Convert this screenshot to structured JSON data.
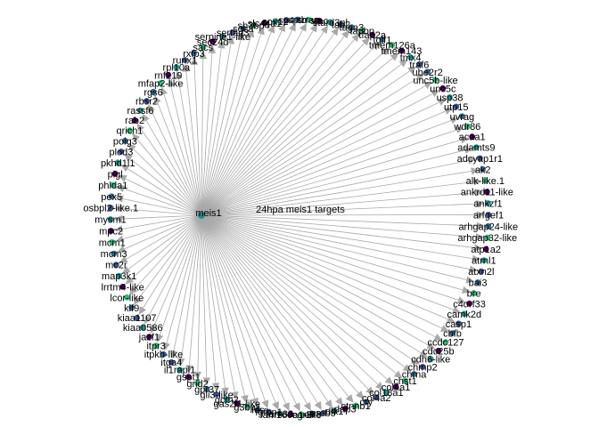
{
  "diagram": {
    "type": "star-network",
    "title": "24hpa meis1 targets",
    "hub": {
      "label": "meis1",
      "color": "#2a8a8a"
    },
    "edge_color": "#a9a9a9",
    "arrow_color": "#a9a9a9",
    "node_colors": [
      "#31688e",
      "#35b779",
      "#440154",
      "#21918c",
      "#3b528b"
    ],
    "targets": [
      "tgif1",
      "tmem126a",
      "tmem143",
      "tmx4",
      "traf6",
      "ube2r2",
      "unc5b-like",
      "unc5c",
      "usp38",
      "utp15",
      "uvrag",
      "wdr86",
      "acaa1",
      "adamts9",
      "adcyap1r1",
      "ak2",
      "alk-like.1",
      "ankrd11-like",
      "ankzf1",
      "arfgef1",
      "arhgap24-like",
      "arhgap32-like",
      "atp1a2",
      "atrnl1",
      "atxn2l",
      "bai3",
      "bre",
      "c4orf33",
      "camk2d",
      "casp1",
      "cbfb",
      "ccdc127",
      "cdc25b",
      "cdh6-like",
      "chmp2",
      "chrna",
      "chst1",
      "col4a1",
      "col18a1",
      "col4a2",
      "cry",
      "ctnnb1",
      "dap3",
      "dlk1",
      "creb5",
      "efr3",
      "egr2",
      "fam160a1-like",
      "fam83",
      "fgfbp1",
      "fos",
      "g3bp1",
      "gas2l1-like",
      "gcm2",
      "gli3-like",
      "gpr37",
      "grid2",
      "gspt1",
      "il1rapl1",
      "itga4",
      "itpkb-like",
      "itpr3",
      "jazf1",
      "kiaa0586",
      "kiaa1107",
      "klf9",
      "lcor-like",
      "lrrtm4-like",
      "map3k1",
      "mc2r",
      "mcm3",
      "mcm1",
      "mpc2",
      "mysm1",
      "osbpl2-like.1",
      "pex5",
      "phlda1",
      "pigl",
      "pkhd1l1",
      "plod3",
      "polg3",
      "qrich1",
      "rab2",
      "rassf6",
      "rbsr2",
      "rgs6",
      "mfap2-like",
      "rnf219",
      "rpl10a",
      "runx1",
      "rxfp3",
      "sacs",
      "sec24d",
      "serpine1-like",
      "sertad3",
      "sgca",
      "sh3bp4",
      "slc44a1",
      "sox12",
      "sp4",
      "sptb",
      "srrap",
      "stac",
      "stard3nl",
      "tab2",
      "taga3",
      "tapbp",
      "tfap2a"
    ]
  }
}
